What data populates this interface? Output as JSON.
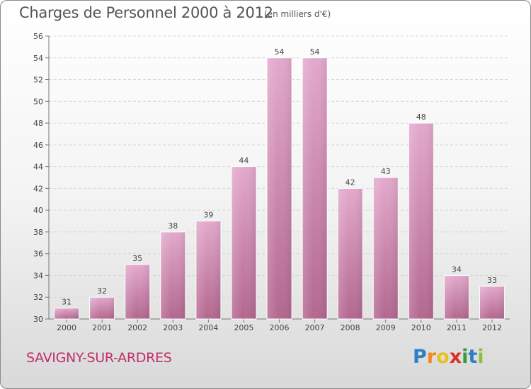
{
  "header": {
    "title": "Charges de Personnel 2000 à 2012",
    "subtitle": "(en milliers d'€)"
  },
  "footer": {
    "commune": "SAVIGNY-SUR-ARDRES",
    "logo_letters": [
      "P",
      "r",
      "o",
      "x",
      "i",
      "t",
      "i"
    ],
    "logo_colors": [
      "#2f7fc8",
      "#f08a1c",
      "#e8c21a",
      "#d9302a",
      "#3a9a3a",
      "#2f7fc8",
      "#8ac13a"
    ]
  },
  "chart_data": {
    "type": "bar",
    "title": "Charges de Personnel 2000 à 2012",
    "subtitle": "(en milliers d'€)",
    "categories": [
      "2000",
      "2001",
      "2002",
      "2003",
      "2004",
      "2005",
      "2006",
      "2007",
      "2008",
      "2009",
      "2010",
      "2011",
      "2012"
    ],
    "values": [
      31,
      32,
      35,
      38,
      39,
      44,
      54,
      54,
      42,
      43,
      48,
      34,
      33
    ],
    "ylim": [
      30,
      56
    ],
    "yticks": [
      30,
      32,
      34,
      36,
      38,
      40,
      42,
      44,
      46,
      48,
      50,
      52,
      54,
      56
    ],
    "grid": true,
    "bar_color": "#d58bb5"
  }
}
